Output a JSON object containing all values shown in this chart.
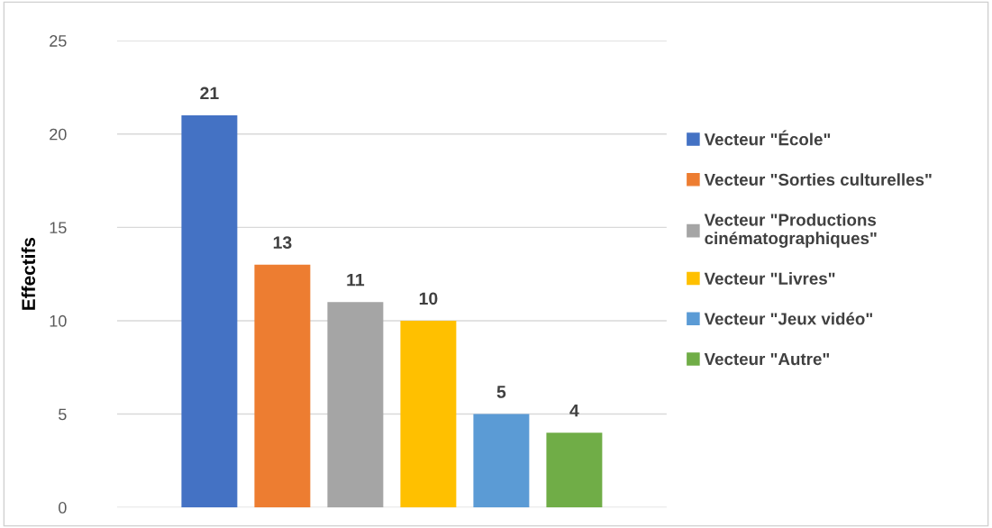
{
  "chart_data": {
    "type": "bar",
    "ylabel": "Effectifs",
    "categories": [
      null
    ],
    "series": [
      {
        "name": "Vecteur \"École\"",
        "color": "#4472c4",
        "values": [
          21
        ]
      },
      {
        "name": "Vecteur \"Sorties culturelles\"",
        "color": "#ed7d31",
        "values": [
          13
        ]
      },
      {
        "name": "Vecteur \"Productions\ncinématographiques\"",
        "color": "#a5a5a5",
        "values": [
          11
        ]
      },
      {
        "name": "Vecteur \"Livres\"",
        "color": "#ffc000",
        "values": [
          10
        ]
      },
      {
        "name": "Vecteur \"Jeux vidéo\"",
        "color": "#5b9bd5",
        "values": [
          5
        ]
      },
      {
        "name": "Vecteur \"Autre\"",
        "color": "#70ad47",
        "values": [
          4
        ]
      }
    ],
    "ylim": [
      0,
      25
    ],
    "yticks": [
      0,
      5,
      10,
      15,
      20,
      25
    ],
    "grid": "y",
    "legend": "right",
    "data_labels": true
  }
}
